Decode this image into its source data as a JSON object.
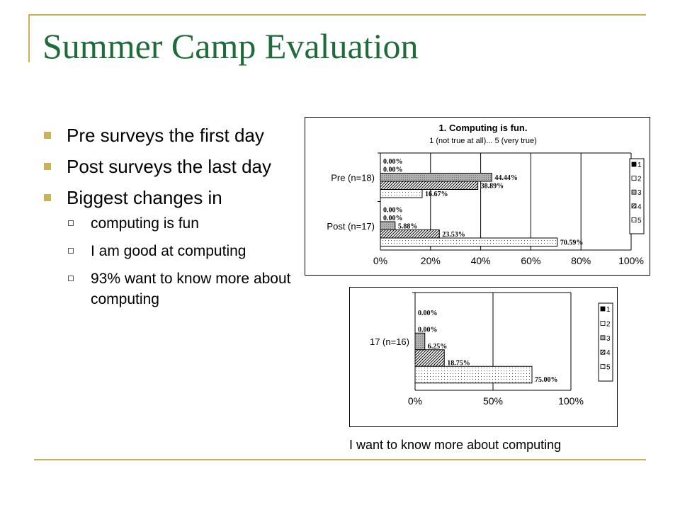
{
  "slide": {
    "title": "Summer Camp Evaluation",
    "bullets": [
      "Pre surveys the first day",
      "Post surveys the last day",
      "Biggest changes in"
    ],
    "subbullets": [
      "computing is fun",
      "I am good at computing",
      "93% want to know more about computing"
    ],
    "caption": "I want to know more about computing"
  },
  "colors": {
    "title": "#1f6b3a",
    "accent": "#c9b25a"
  },
  "chart_data": [
    {
      "type": "bar",
      "orientation": "horizontal",
      "title": "1. Computing is fun.",
      "subtitle": "1 (not true at all)... 5 (very true)",
      "categories": [
        "Pre (n=18)",
        "Post (n=17)"
      ],
      "series": [
        {
          "name": "1",
          "values": [
            0.0,
            0.0
          ],
          "labels": [
            "0.00%",
            "0.00%"
          ]
        },
        {
          "name": "2",
          "values": [
            0.0,
            0.0
          ],
          "labels": [
            "0.00%",
            "0.00%"
          ]
        },
        {
          "name": "3",
          "values": [
            44.44,
            5.88
          ],
          "labels": [
            "44.44%",
            "5.88%"
          ]
        },
        {
          "name": "4",
          "values": [
            38.89,
            23.53
          ],
          "labels": [
            "38.89%",
            "23.53%"
          ]
        },
        {
          "name": "5",
          "values": [
            16.67,
            70.59
          ],
          "labels": [
            "16.67%",
            "70.59%"
          ]
        }
      ],
      "xlim": [
        0,
        100
      ],
      "xticks": [
        "0%",
        "20%",
        "40%",
        "60%",
        "80%",
        "100%"
      ],
      "legend": [
        "1",
        "2",
        "3",
        "4",
        "5"
      ],
      "legend_position": "right",
      "grid": true
    },
    {
      "type": "bar",
      "orientation": "horizontal",
      "title": "",
      "categories": [
        "17 (n=16)"
      ],
      "series": [
        {
          "name": "1",
          "values": [
            0.0
          ],
          "labels": [
            "0.00%"
          ]
        },
        {
          "name": "2",
          "values": [
            0.0
          ],
          "labels": [
            "0.00%"
          ]
        },
        {
          "name": "3",
          "values": [
            6.25
          ],
          "labels": [
            "6.25%"
          ]
        },
        {
          "name": "4",
          "values": [
            18.75
          ],
          "labels": [
            "18.75%"
          ]
        },
        {
          "name": "5",
          "values": [
            75.0
          ],
          "labels": [
            "75.00%"
          ]
        }
      ],
      "xlim": [
        0,
        100
      ],
      "xticks": [
        "0%",
        "50%",
        "100%"
      ],
      "legend": [
        "1",
        "2",
        "3",
        "4",
        "5"
      ],
      "legend_position": "right",
      "grid": true
    }
  ]
}
